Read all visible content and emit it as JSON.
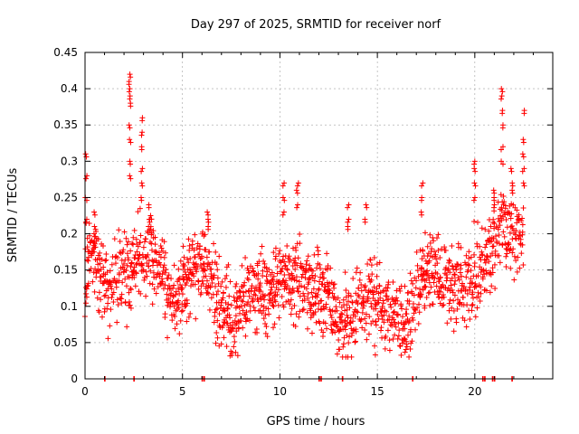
{
  "chart_data": {
    "type": "scatter",
    "title": "Day 297 of 2025, SRMTID for receiver norf",
    "xlabel": "GPS time / hours",
    "ylabel": "SRMTID / TECUs",
    "xlim": [
      0,
      24
    ],
    "ylim": [
      0,
      0.45
    ],
    "x_ticks": [
      0,
      5,
      10,
      15,
      20
    ],
    "x_tick_labels": [
      "0",
      "5",
      "10",
      "15",
      "20"
    ],
    "y_ticks": [
      0,
      0.05,
      0.1,
      0.15,
      0.2,
      0.25,
      0.3,
      0.35,
      0.4,
      0.45
    ],
    "y_tick_labels": [
      "0",
      "0.05",
      "0.1",
      "0.15",
      "0.2",
      "0.25",
      "0.3",
      "0.35",
      "0.4",
      "0.45"
    ],
    "grid": true,
    "marker": "+",
    "color": "#ff0000",
    "series": [
      {
        "name": "SRMTID",
        "trend": [
          [
            0.0,
            0.13
          ],
          [
            0.3,
            0.17
          ],
          [
            0.7,
            0.15
          ],
          [
            1.0,
            0.12
          ],
          [
            1.5,
            0.13
          ],
          [
            2.0,
            0.14
          ],
          [
            2.4,
            0.16
          ],
          [
            3.0,
            0.17
          ],
          [
            3.5,
            0.16
          ],
          [
            4.0,
            0.14
          ],
          [
            4.5,
            0.1
          ],
          [
            5.0,
            0.12
          ],
          [
            5.5,
            0.15
          ],
          [
            6.0,
            0.16
          ],
          [
            6.5,
            0.13
          ],
          [
            7.0,
            0.09
          ],
          [
            7.5,
            0.08
          ],
          [
            8.0,
            0.1
          ],
          [
            8.5,
            0.12
          ],
          [
            9.0,
            0.12
          ],
          [
            9.5,
            0.12
          ],
          [
            10.0,
            0.14
          ],
          [
            10.5,
            0.13
          ],
          [
            11.0,
            0.13
          ],
          [
            11.5,
            0.12
          ],
          [
            12.0,
            0.12
          ],
          [
            12.5,
            0.11
          ],
          [
            13.0,
            0.08
          ],
          [
            13.5,
            0.08
          ],
          [
            14.0,
            0.1
          ],
          [
            14.5,
            0.11
          ],
          [
            15.0,
            0.1
          ],
          [
            15.5,
            0.1
          ],
          [
            16.0,
            0.08
          ],
          [
            16.5,
            0.07
          ],
          [
            17.0,
            0.12
          ],
          [
            17.5,
            0.15
          ],
          [
            18.0,
            0.15
          ],
          [
            18.5,
            0.14
          ],
          [
            19.0,
            0.12
          ],
          [
            19.5,
            0.13
          ],
          [
            20.0,
            0.15
          ],
          [
            20.5,
            0.15
          ],
          [
            21.0,
            0.18
          ],
          [
            21.5,
            0.21
          ],
          [
            22.0,
            0.19
          ],
          [
            22.5,
            0.2
          ]
        ],
        "spikes": [
          {
            "x": 0.05,
            "values": [
              0.31,
              0.28,
              0.25,
              0.22
            ]
          },
          {
            "x": 0.5,
            "values": [
              0.23,
              0.21,
              0.2,
              0.19
            ]
          },
          {
            "x": 2.3,
            "values": [
              0.42,
              0.41,
              0.4,
              0.39,
              0.38,
              0.35,
              0.33,
              0.3,
              0.28
            ]
          },
          {
            "x": 2.9,
            "values": [
              0.36,
              0.34,
              0.32,
              0.29,
              0.27,
              0.25
            ]
          },
          {
            "x": 3.3,
            "values": [
              0.24,
              0.22,
              0.21
            ]
          },
          {
            "x": 6.3,
            "values": [
              0.23,
              0.22,
              0.21
            ]
          },
          {
            "x": 10.2,
            "values": [
              0.27,
              0.25,
              0.23
            ]
          },
          {
            "x": 10.9,
            "values": [
              0.27,
              0.26,
              0.24
            ]
          },
          {
            "x": 13.5,
            "values": [
              0.24,
              0.22,
              0.21
            ]
          },
          {
            "x": 14.4,
            "values": [
              0.24,
              0.22
            ]
          },
          {
            "x": 17.3,
            "values": [
              0.27,
              0.25,
              0.23
            ]
          },
          {
            "x": 20.0,
            "values": [
              0.3,
              0.29,
              0.27,
              0.25
            ]
          },
          {
            "x": 21.0,
            "values": [
              0.26,
              0.25,
              0.24
            ]
          },
          {
            "x": 21.4,
            "values": [
              0.4,
              0.39,
              0.37,
              0.35,
              0.32,
              0.3
            ]
          },
          {
            "x": 21.9,
            "values": [
              0.29,
              0.27,
              0.26
            ]
          },
          {
            "x": 22.5,
            "values": [
              0.37,
              0.33,
              0.31,
              0.29,
              0.27
            ]
          }
        ],
        "zero_points": [
          1.0,
          2.5,
          6.0,
          6.1,
          12.0,
          12.1,
          13.2,
          16.8,
          20.4,
          20.5,
          20.9,
          21.0,
          21.9
        ]
      }
    ]
  }
}
